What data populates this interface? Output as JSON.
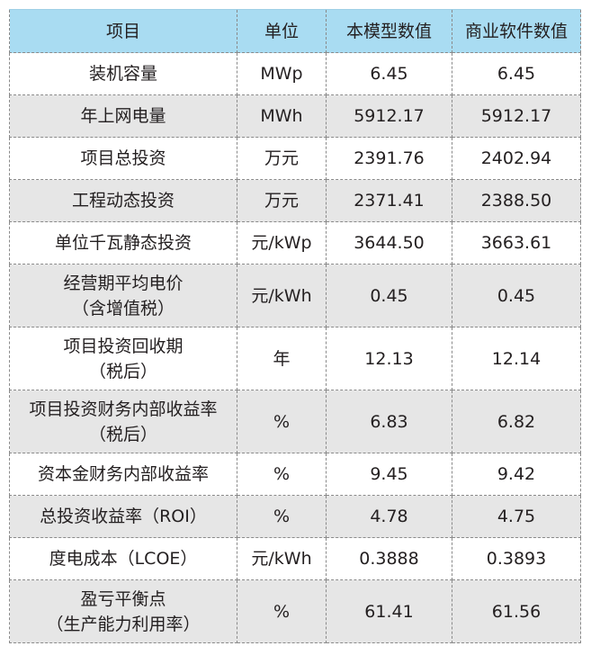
{
  "table": {
    "header": [
      "项目",
      "单位",
      "本模型数值",
      "商业软件数值"
    ],
    "rows": [
      [
        "装机容量",
        "MWp",
        "6.45",
        "6.45"
      ],
      [
        "年上网电量",
        "MWh",
        "5912.17",
        "5912.17"
      ],
      [
        "项目总投资",
        "万元",
        "2391.76",
        "2402.94"
      ],
      [
        "工程动态投资",
        "万元",
        "2371.41",
        "2388.50"
      ],
      [
        "单位千瓦静态投资",
        "元/kWp",
        "3644.50",
        "3663.61"
      ],
      [
        "经营期平均电价\n（含增值税）",
        "元/kWh",
        "0.45",
        "0.45"
      ],
      [
        "项目投资回收期\n（税后）",
        "年",
        "12.13",
        "12.14"
      ],
      [
        "项目投资财务内部收益率\n（税后）",
        "%",
        "6.83",
        "6.82"
      ],
      [
        "资本金财务内部收益率",
        "%",
        "9.45",
        "9.42"
      ],
      [
        "总投资收益率（ROI）",
        "%",
        "4.78",
        "4.75"
      ],
      [
        "度电成本（LCOE）",
        "元/kWh",
        "0.3888",
        "0.3893"
      ],
      [
        "盈亏平衡点\n（生产能力利用率）",
        "%",
        "61.41",
        "61.56"
      ]
    ]
  }
}
